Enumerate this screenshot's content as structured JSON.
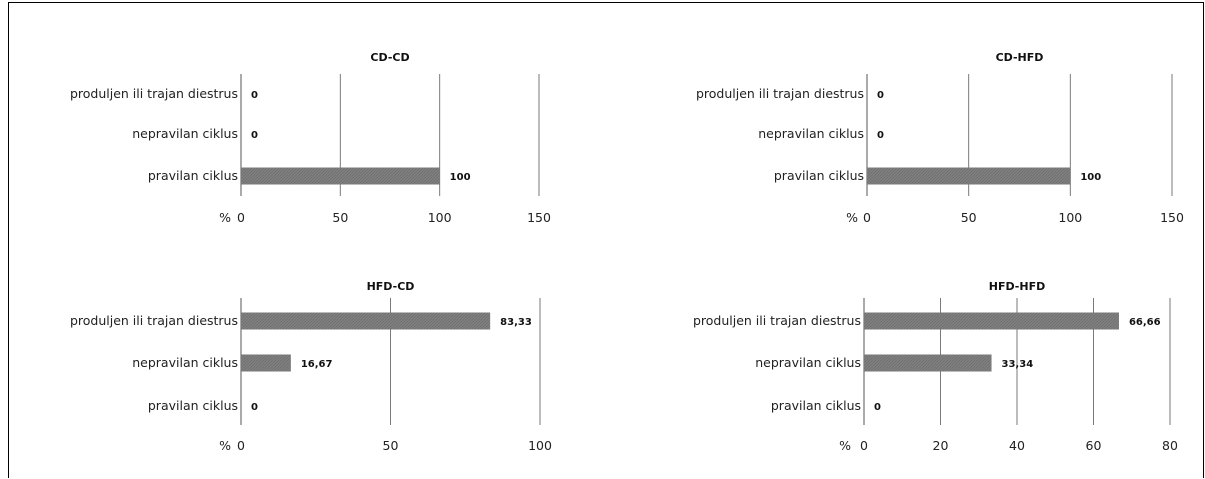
{
  "chart_data": [
    {
      "type": "bar",
      "title": "CD-CD",
      "categories": [
        "produljen ili trajan diestrus",
        "nepravilan ciklus",
        "pravilan ciklus"
      ],
      "values": [
        0,
        0,
        100
      ],
      "value_labels": [
        "0",
        "0",
        "100"
      ],
      "xlabel": "%",
      "xlim": [
        0,
        150
      ],
      "xticks": [
        "0",
        "50",
        "100",
        "150"
      ],
      "grid": true,
      "bar_color": "#7f7f7f"
    },
    {
      "type": "bar",
      "title": "CD-HFD",
      "categories": [
        "produljen ili trajan diestrus",
        "nepravilan ciklus",
        "pravilan ciklus"
      ],
      "values": [
        0,
        0,
        100
      ],
      "value_labels": [
        "0",
        "0",
        "100"
      ],
      "xlabel": "%",
      "xlim": [
        0,
        150
      ],
      "xticks": [
        "0",
        "50",
        "100",
        "150"
      ],
      "grid": true,
      "bar_color": "#7f7f7f"
    },
    {
      "type": "bar",
      "title": "HFD-CD",
      "categories": [
        "produljen ili trajan diestrus",
        "nepravilan ciklus",
        "pravilan ciklus"
      ],
      "values": [
        83.33,
        16.67,
        0
      ],
      "value_labels": [
        "83,33",
        "16,67",
        "0"
      ],
      "xlabel": "%",
      "xlim": [
        0,
        100
      ],
      "xticks": [
        "0",
        "50",
        "100"
      ],
      "grid": true,
      "bar_color": "#7f7f7f"
    },
    {
      "type": "bar",
      "title": "HFD-HFD",
      "categories": [
        "produljen ili trajan diestrus",
        "nepravilan ciklus",
        "pravilan ciklus"
      ],
      "values": [
        66.66,
        33.34,
        0
      ],
      "value_labels": [
        "66,66",
        "33,34",
        "0"
      ],
      "xlabel": "%",
      "xlim": [
        0,
        80
      ],
      "xticks": [
        "0",
        "20",
        "40",
        "60",
        "80"
      ],
      "grid": true,
      "bar_color": "#7f7f7f"
    }
  ]
}
